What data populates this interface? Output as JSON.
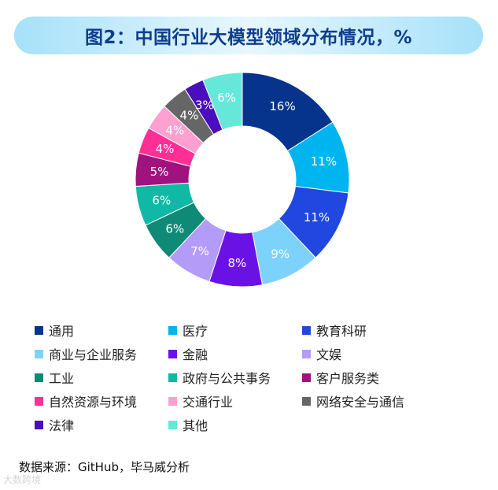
{
  "title": "图2：中国行业大模型领域分布情况，%",
  "source": "数据来源：GitHub，毕马威分析",
  "watermark": "大数跨境",
  "chart_data": {
    "type": "pie",
    "subtype": "donut",
    "title": "图2：中国行业大模型领域分布情况，%",
    "unit": "%",
    "start_angle_deg": 0,
    "direction": "clockwise",
    "legend_position": "bottom",
    "categories": [
      "通用",
      "医疗",
      "教育科研",
      "商业与企业服务",
      "金融",
      "文娱",
      "工业",
      "政府与公共事务",
      "客户服务类",
      "自然资源与环境",
      "交通行业",
      "网络安全与通信",
      "法律",
      "其他"
    ],
    "values": [
      16,
      11,
      11,
      9,
      8,
      7,
      6,
      6,
      5,
      4,
      4,
      4,
      3,
      6
    ],
    "labels": [
      "16%",
      "11%",
      "11%",
      "9%",
      "8%",
      "7%",
      "6%",
      "6%",
      "5%",
      "4%",
      "4%",
      "4%",
      "3%",
      "6%"
    ],
    "colors": [
      "#06348c",
      "#00b4f0",
      "#2048e0",
      "#7dd2fc",
      "#6a12e6",
      "#b39cf8",
      "#0e8a76",
      "#10b9a5",
      "#a0127e",
      "#ff2f96",
      "#ffa0d0",
      "#666666",
      "#4a0ebc",
      "#66e8d9"
    ]
  },
  "legend": [
    {
      "label": "通用",
      "color": "#06348c"
    },
    {
      "label": "医疗",
      "color": "#00b4f0"
    },
    {
      "label": "教育科研",
      "color": "#2048e0"
    },
    {
      "label": "商业与企业服务",
      "color": "#7dd2fc"
    },
    {
      "label": "金融",
      "color": "#6a12e6"
    },
    {
      "label": "文娱",
      "color": "#b39cf8"
    },
    {
      "label": "工业",
      "color": "#0e8a76"
    },
    {
      "label": "政府与公共事务",
      "color": "#10b9a5"
    },
    {
      "label": "客户服务类",
      "color": "#a0127e"
    },
    {
      "label": "自然资源与环境",
      "color": "#ff2f96"
    },
    {
      "label": "交通行业",
      "color": "#ffa0d0"
    },
    {
      "label": "网络安全与通信",
      "color": "#666666"
    },
    {
      "label": "法律",
      "color": "#4a0ebc"
    },
    {
      "label": "其他",
      "color": "#66e8d9"
    }
  ]
}
